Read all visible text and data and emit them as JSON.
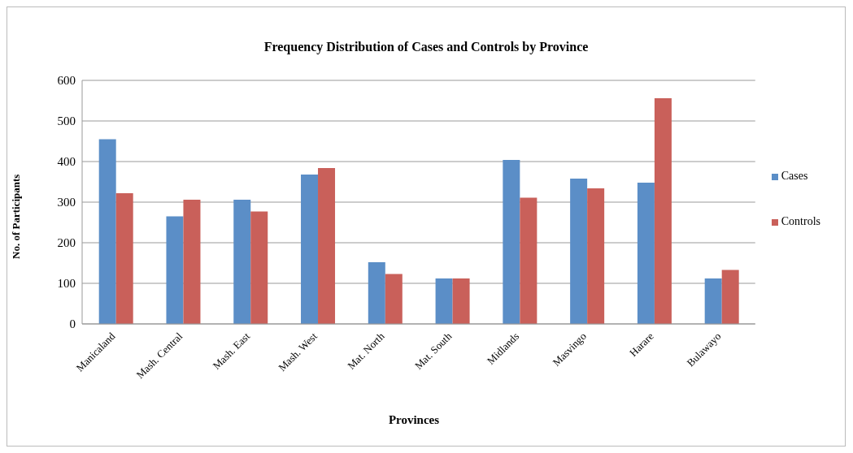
{
  "chart_data": {
    "type": "bar",
    "title": "Frequency Distribution of Cases and Controls  by Province",
    "xlabel": "Provinces",
    "ylabel": "No. of Participants",
    "categories": [
      "Manicaland",
      "Mash. Central",
      "Mash. East",
      "Mash. West",
      "Mat. North",
      "Mat. South",
      "Midlands",
      "Masvingo",
      "Harare",
      "Bulawayo"
    ],
    "series": [
      {
        "name": "Cases",
        "color": "#5b8ec7",
        "values": [
          455,
          265,
          306,
          368,
          152,
          112,
          404,
          358,
          348,
          112
        ]
      },
      {
        "name": "Controls",
        "color": "#c9605a",
        "values": [
          322,
          306,
          277,
          384,
          123,
          112,
          311,
          334,
          556,
          133
        ]
      }
    ],
    "ylim": [
      0,
      600
    ],
    "yticks": [
      0,
      100,
      200,
      300,
      400,
      500,
      600
    ],
    "grid": "y",
    "legend": "right"
  }
}
